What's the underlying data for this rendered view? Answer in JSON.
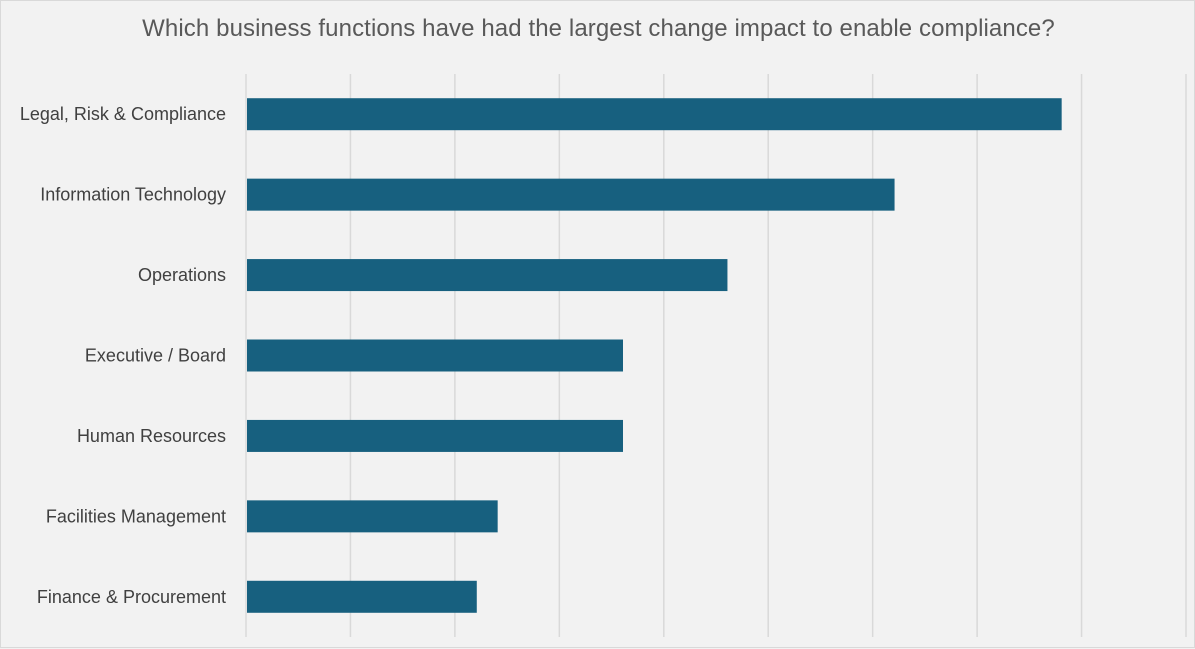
{
  "chart_data": {
    "type": "bar",
    "orientation": "horizontal",
    "title": "Which business functions have had the largest change impact to enable compliance?",
    "xlabel": "",
    "ylabel": "",
    "categories": [
      "Legal, Risk & Compliance",
      "Information Technology",
      "Operations",
      "Executive / Board",
      "Human Resources",
      "Facilities Management",
      "Finance & Procurement"
    ],
    "values": [
      39,
      31,
      23,
      18,
      18,
      12,
      11
    ],
    "xlim": [
      0,
      45
    ],
    "grid": true,
    "legend": "none",
    "bar_color": "#17607f"
  }
}
